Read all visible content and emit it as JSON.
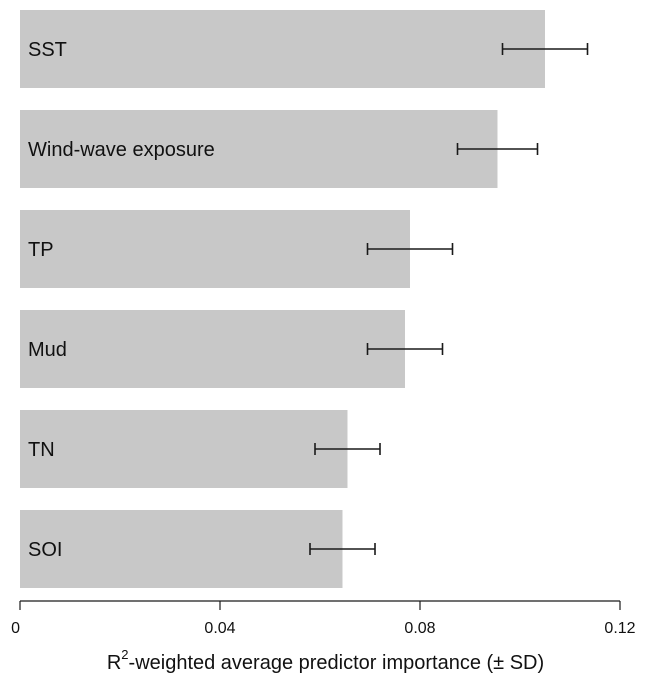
{
  "chart_data": {
    "type": "bar",
    "orientation": "horizontal",
    "categories": [
      "SST",
      "Wind-wave exposure",
      "TP",
      "Mud",
      "TN",
      "SOI"
    ],
    "values": [
      0.105,
      0.0955,
      0.078,
      0.077,
      0.0655,
      0.0645
    ],
    "errors": [
      0.0085,
      0.008,
      0.0085,
      0.0075,
      0.0065,
      0.0065
    ],
    "xlim": [
      0,
      0.12
    ],
    "xticks": [
      0,
      0.04,
      0.08,
      0.12
    ],
    "xtick_labels": [
      "0",
      "0.04",
      "0.08",
      "0.12"
    ],
    "xlabel_prefix": "R",
    "xlabel_sup": "2",
    "xlabel_suffix": "-weighted average predictor importance (± SD)",
    "grid": false,
    "bar_color": "#c8c8c8"
  }
}
